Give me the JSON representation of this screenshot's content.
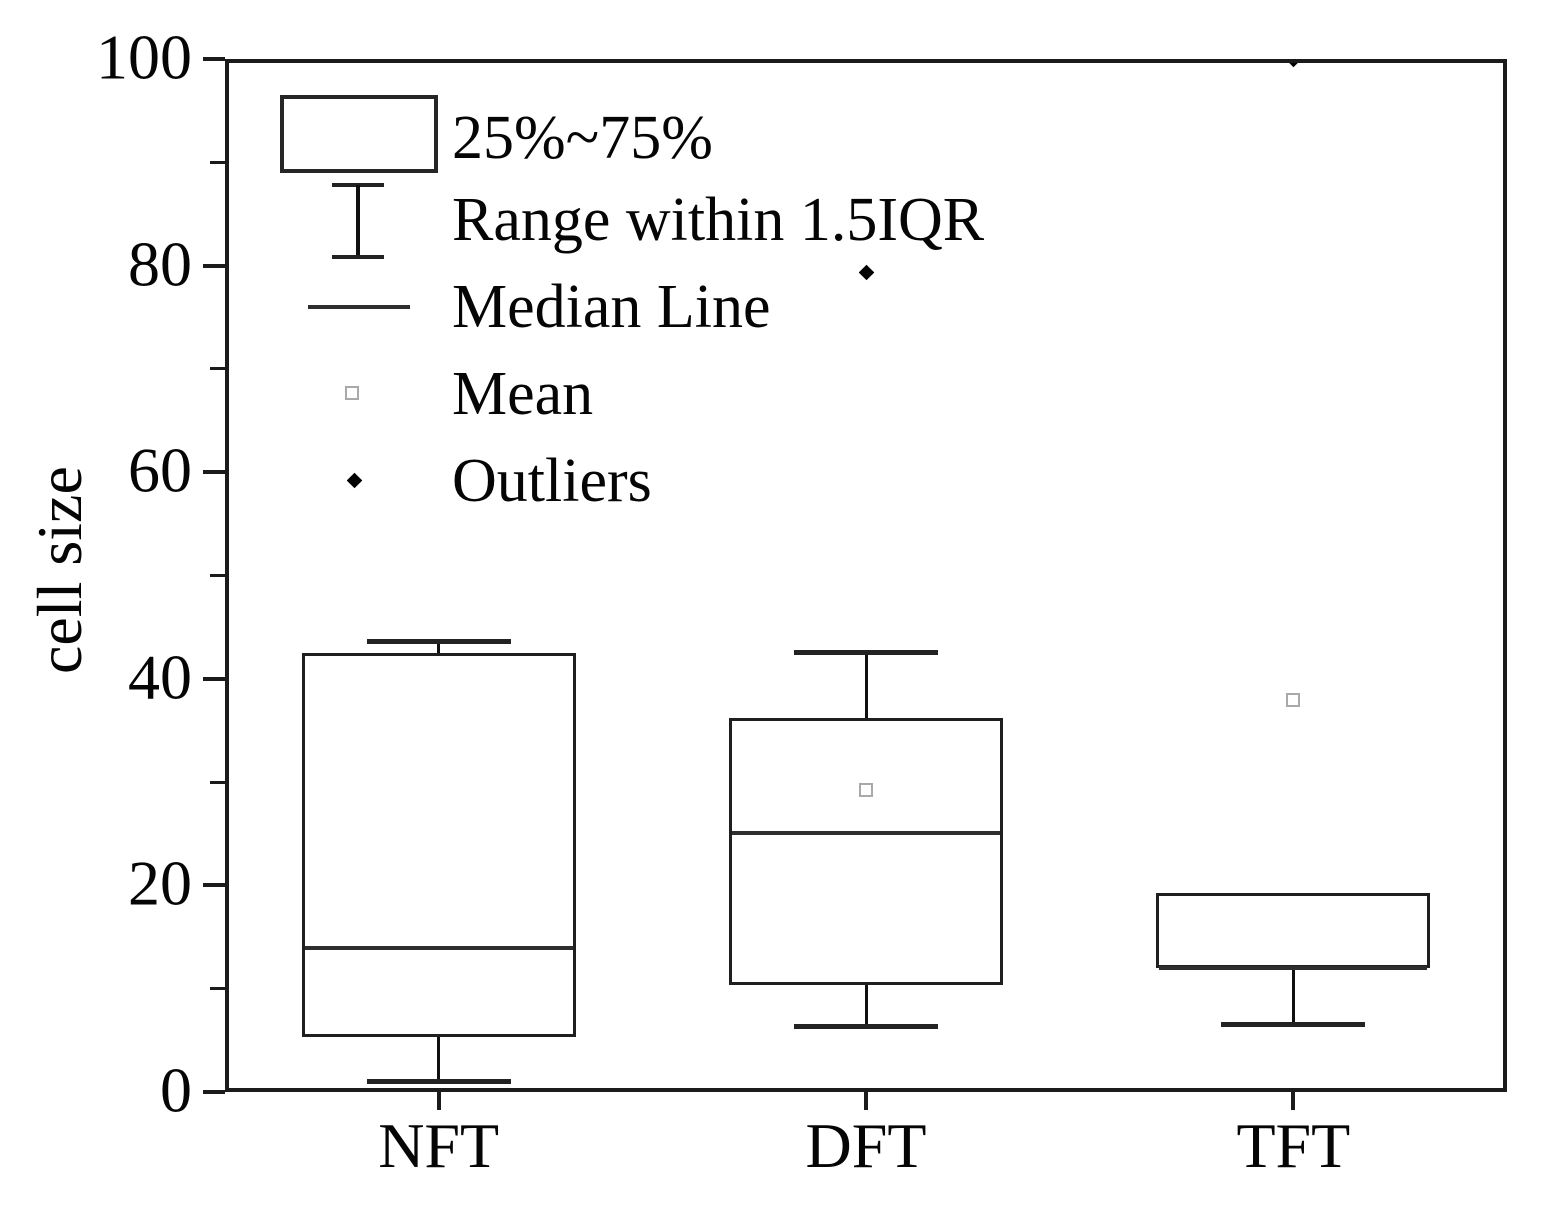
{
  "chart_data": {
    "type": "box",
    "title": "",
    "ylabel": "cell size",
    "xlabel": "",
    "ylim": [
      0,
      100
    ],
    "y_major_ticks": [
      0,
      20,
      40,
      60,
      80,
      100
    ],
    "y_minor_ticks": [
      10,
      30,
      50,
      70,
      90
    ],
    "categories": [
      "NFT",
      "DFT",
      "TFT"
    ],
    "grid": false,
    "legend_position": "top-left",
    "legend": [
      {
        "marker": "box",
        "label": "25%~75%"
      },
      {
        "marker": "whisker",
        "label": "Range within 1.5IQR"
      },
      {
        "marker": "median-line",
        "label": "Median Line"
      },
      {
        "marker": "mean-square",
        "label": "Mean"
      },
      {
        "marker": "outlier-diamond",
        "label": "Outliers"
      }
    ],
    "series": [
      {
        "name": "NFT",
        "q1": 5.3,
        "median": 13.9,
        "q3": 42.5,
        "whisker_low": 1.0,
        "whisker_high": 43.6,
        "mean": null,
        "outliers": []
      },
      {
        "name": "DFT",
        "q1": 10.4,
        "median": 25.1,
        "q3": 36.2,
        "whisker_low": 6.3,
        "whisker_high": 42.5,
        "mean": 29.2,
        "outliers": [
          79.3
        ]
      },
      {
        "name": "TFT",
        "q1": 12.0,
        "median": 12.0,
        "q3": 19.3,
        "whisker_low": 6.5,
        "whisker_high": null,
        "mean": 37.9,
        "outliers": [
          100.0
        ]
      }
    ],
    "colors": {
      "line": "#1b1b1b",
      "median": "#2e2e2e",
      "mean_marker_border": "#a9a9a9",
      "outlier_marker": "#000000",
      "background": "#ffffff"
    }
  }
}
